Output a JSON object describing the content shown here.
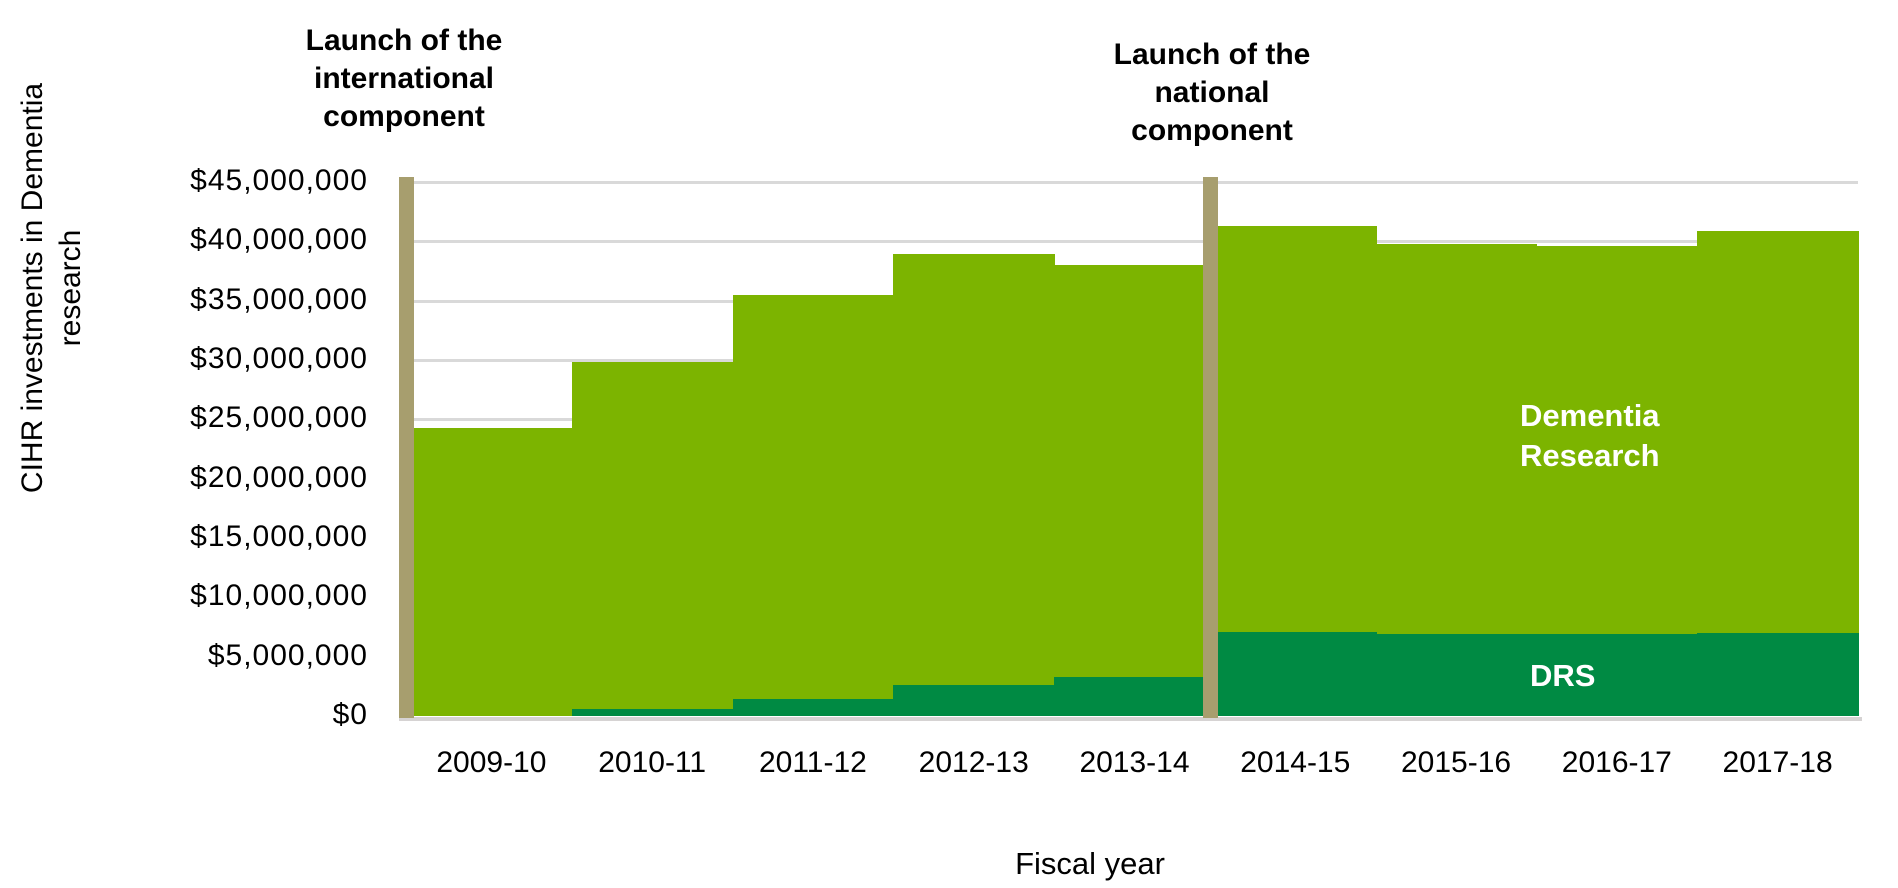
{
  "chart_data": {
    "type": "area",
    "subtype": "stacked-step-columns",
    "title": "",
    "xlabel": "Fiscal year",
    "ylabel": "CIHR investments in Dementia research",
    "ylabel_display": "CIHR investments in Dementia\nresearch",
    "categories": [
      "2009-10",
      "2010-11",
      "2011-12",
      "2012-13",
      "2013-14",
      "2014-15",
      "2015-16",
      "2016-17",
      "2017-18"
    ],
    "series": [
      {
        "name": "DRS",
        "color": "#008A43",
        "values": [
          0,
          600000,
          1400000,
          2600000,
          3300000,
          7100000,
          6900000,
          6900000,
          7000000
        ]
      },
      {
        "name": "Dementia Research",
        "color": "#7CB400",
        "values": [
          24300000,
          29200000,
          34100000,
          36300000,
          34700000,
          34200000,
          32900000,
          32700000,
          33900000
        ]
      }
    ],
    "totals": [
      24300000,
      29800000,
      35500000,
      38900000,
      38000000,
      41300000,
      39800000,
      39600000,
      40900000
    ],
    "y_axis": {
      "min": 0,
      "max": 45000000,
      "tick_step": 5000000,
      "tick_labels": [
        "$0",
        "$5,000,000",
        "$10,000,000",
        "$15,000,000",
        "$20,000,000",
        "$25,000,000",
        "$30,000,000",
        "$35,000,000",
        "$40,000,000",
        "$45,000,000"
      ]
    },
    "grid": true,
    "legend_position": "inside-right",
    "annotations": [
      {
        "text": "Launch of the\ninternational\ncomponent",
        "at_category_boundary": 0,
        "marker_color": "#A79E6E"
      },
      {
        "text": "Launch of the\nnational\ncomponent",
        "at_category_boundary": 5,
        "marker_color": "#A79E6E"
      }
    ],
    "series_labels_inside": [
      {
        "text": "Dementia\nResearch",
        "series": "Dementia Research",
        "color": "#ffffff"
      },
      {
        "text": "DRS",
        "series": "DRS",
        "color": "#ffffff"
      }
    ]
  }
}
